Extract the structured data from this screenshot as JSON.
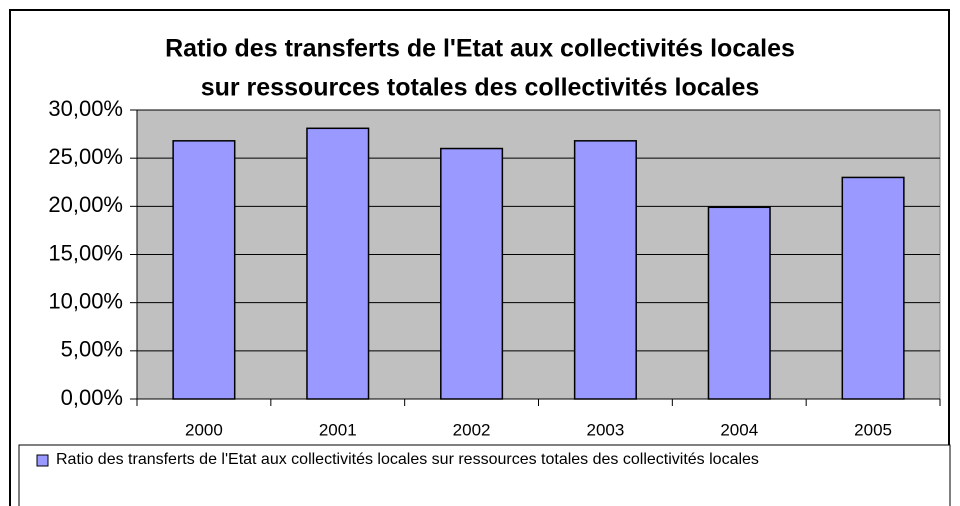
{
  "chart_data": {
    "type": "bar",
    "title": [
      "Ratio des transferts de l'Etat aux collectivités locales",
      "sur ressources totales des collectivités locales"
    ],
    "categories": [
      "2000",
      "2001",
      "2002",
      "2003",
      "2004",
      "2005"
    ],
    "series": [
      {
        "name": "Ratio des transferts de l'Etat aux collectivités locales sur ressources totales des collectivités locales",
        "color": "#9999ff",
        "values": [
          26.8,
          28.1,
          26.0,
          26.8,
          19.9,
          23.0
        ]
      }
    ],
    "ylim": [
      0,
      30
    ],
    "yticks": [
      {
        "value": 0,
        "label": "0,00%"
      },
      {
        "value": 5,
        "label": "5,00%"
      },
      {
        "value": 10,
        "label": "10,00%"
      },
      {
        "value": 15,
        "label": "15,00%"
      },
      {
        "value": 20,
        "label": "20,00%"
      },
      {
        "value": 25,
        "label": "25,00%"
      },
      {
        "value": 30,
        "label": "30,00%"
      }
    ],
    "grid": true,
    "legend": "bottom",
    "plot_background": "#c0c0c0"
  }
}
